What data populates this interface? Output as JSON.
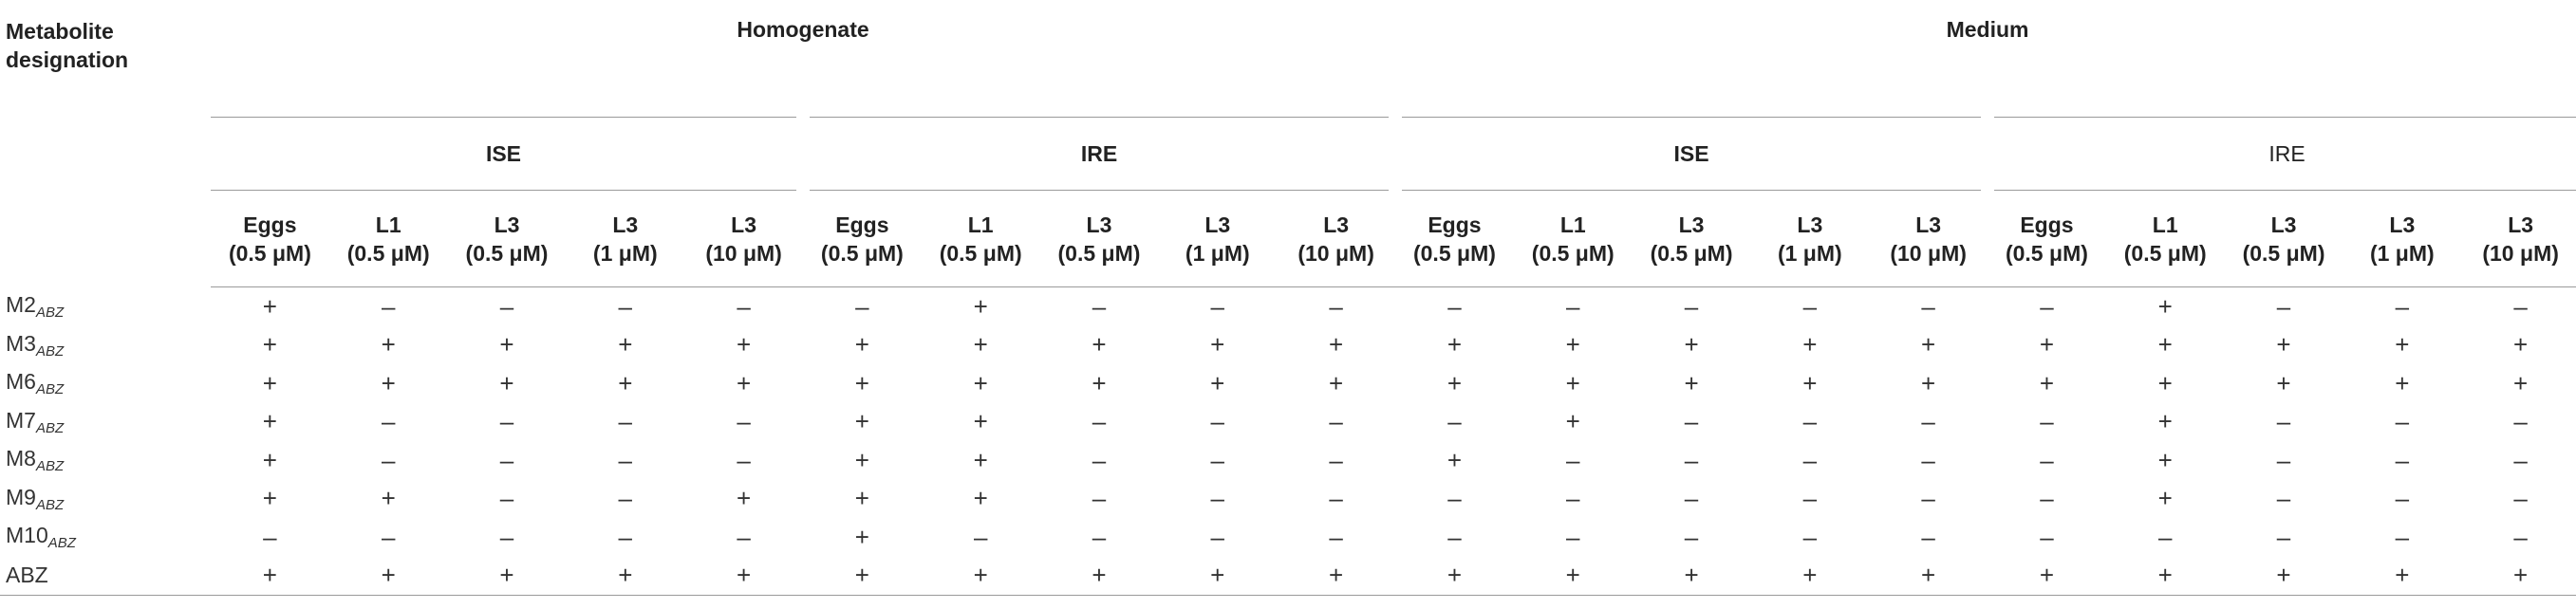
{
  "header": {
    "corner_line1": "Metabolite",
    "corner_line2": "designation",
    "groups": [
      "Homogenate",
      "Medium"
    ],
    "subgroups": [
      "ISE",
      "IRE",
      "ISE",
      "IRE"
    ],
    "columns": [
      {
        "stage": "Eggs",
        "conc": "(0.5 μM)"
      },
      {
        "stage": "L1",
        "conc": "(0.5 μM)"
      },
      {
        "stage": "L3",
        "conc": "(0.5 μM)"
      },
      {
        "stage": "L3",
        "conc": "(1 μM)"
      },
      {
        "stage": "L3",
        "conc": "(10 μM)"
      }
    ]
  },
  "rows": [
    {
      "base": "M2",
      "sub": "ABZ",
      "values": [
        "+",
        "–",
        "–",
        "–",
        "–",
        "–",
        "+",
        "–",
        "–",
        "–",
        "–",
        "–",
        "–",
        "–",
        "–",
        "–",
        "+",
        "–",
        "–",
        "–"
      ]
    },
    {
      "base": "M3",
      "sub": "ABZ",
      "values": [
        "+",
        "+",
        "+",
        "+",
        "+",
        "+",
        "+",
        "+",
        "+",
        "+",
        "+",
        "+",
        "+",
        "+",
        "+",
        "+",
        "+",
        "+",
        "+",
        "+"
      ]
    },
    {
      "base": "M6",
      "sub": "ABZ",
      "values": [
        "+",
        "+",
        "+",
        "+",
        "+",
        "+",
        "+",
        "+",
        "+",
        "+",
        "+",
        "+",
        "+",
        "+",
        "+",
        "+",
        "+",
        "+",
        "+",
        "+"
      ]
    },
    {
      "base": "M7",
      "sub": "ABZ",
      "values": [
        "+",
        "–",
        "–",
        "–",
        "–",
        "+",
        "+",
        "–",
        "–",
        "–",
        "–",
        "+",
        "–",
        "–",
        "–",
        "–",
        "+",
        "–",
        "–",
        "–"
      ]
    },
    {
      "base": "M8",
      "sub": "ABZ",
      "values": [
        "+",
        "–",
        "–",
        "–",
        "–",
        "+",
        "+",
        "–",
        "–",
        "–",
        "+",
        "–",
        "–",
        "–",
        "–",
        "–",
        "+",
        "–",
        "–",
        "–"
      ]
    },
    {
      "base": "M9",
      "sub": "ABZ",
      "values": [
        "+",
        "+",
        "–",
        "–",
        "+",
        "+",
        "+",
        "–",
        "–",
        "–",
        "–",
        "–",
        "–",
        "–",
        "–",
        "–",
        "+",
        "–",
        "–",
        "–"
      ]
    },
    {
      "base": "M10",
      "sub": "ABZ",
      "values": [
        "–",
        "–",
        "–",
        "–",
        "–",
        "+",
        "–",
        "–",
        "–",
        "–",
        "–",
        "–",
        "–",
        "–",
        "–",
        "–",
        "–",
        "–",
        "–",
        "–"
      ]
    },
    {
      "base": "ABZ",
      "sub": "",
      "values": [
        "+",
        "+",
        "+",
        "+",
        "+",
        "+",
        "+",
        "+",
        "+",
        "+",
        "+",
        "+",
        "+",
        "+",
        "+",
        "+",
        "+",
        "+",
        "+",
        "+"
      ]
    }
  ]
}
